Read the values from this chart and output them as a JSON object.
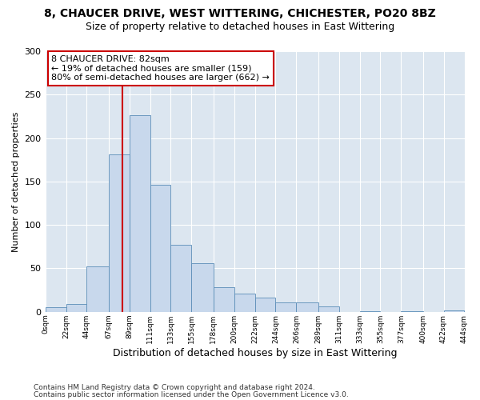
{
  "title1": "8, CHAUCER DRIVE, WEST WITTERING, CHICHESTER, PO20 8BZ",
  "title2": "Size of property relative to detached houses in East Wittering",
  "xlabel": "Distribution of detached houses by size in East Wittering",
  "ylabel": "Number of detached properties",
  "bin_edges": [
    0,
    22,
    44,
    67,
    89,
    111,
    133,
    155,
    178,
    200,
    222,
    244,
    266,
    289,
    311,
    333,
    355,
    377,
    400,
    422,
    444
  ],
  "bar_heights": [
    5,
    9,
    52,
    181,
    226,
    146,
    77,
    56,
    28,
    21,
    16,
    11,
    11,
    6,
    0,
    1,
    0,
    1,
    0,
    2
  ],
  "bar_color": "#c8d8ec",
  "bar_edge_color": "#5b8db8",
  "property_size": 82,
  "red_line_color": "#cc0000",
  "annotation_box_color": "#cc0000",
  "annotation_text_line1": "8 CHAUCER DRIVE: 82sqm",
  "annotation_text_line2": "← 19% of detached houses are smaller (159)",
  "annotation_text_line3": "80% of semi-detached houses are larger (662) →",
  "xlim": [
    0,
    444
  ],
  "ylim": [
    0,
    300
  ],
  "yticks": [
    0,
    50,
    100,
    150,
    200,
    250,
    300
  ],
  "xtick_labels": [
    "0sqm",
    "22sqm",
    "44sqm",
    "67sqm",
    "89sqm",
    "111sqm",
    "133sqm",
    "155sqm",
    "178sqm",
    "200sqm",
    "222sqm",
    "244sqm",
    "266sqm",
    "289sqm",
    "311sqm",
    "333sqm",
    "355sqm",
    "377sqm",
    "400sqm",
    "422sqm",
    "444sqm"
  ],
  "xtick_positions": [
    0,
    22,
    44,
    67,
    89,
    111,
    133,
    155,
    178,
    200,
    222,
    244,
    266,
    289,
    311,
    333,
    355,
    377,
    400,
    422,
    444
  ],
  "footer1": "Contains HM Land Registry data © Crown copyright and database right 2024.",
  "footer2": "Contains public sector information licensed under the Open Government Licence v3.0.",
  "fig_bg_color": "#ffffff",
  "plot_bg_color": "#dce6f0",
  "grid_color": "#ffffff",
  "title1_fontsize": 10,
  "title2_fontsize": 9,
  "xlabel_fontsize": 9,
  "ylabel_fontsize": 8,
  "xtick_fontsize": 6.5,
  "ytick_fontsize": 8,
  "footer_fontsize": 6.5,
  "ann_fontsize": 8
}
